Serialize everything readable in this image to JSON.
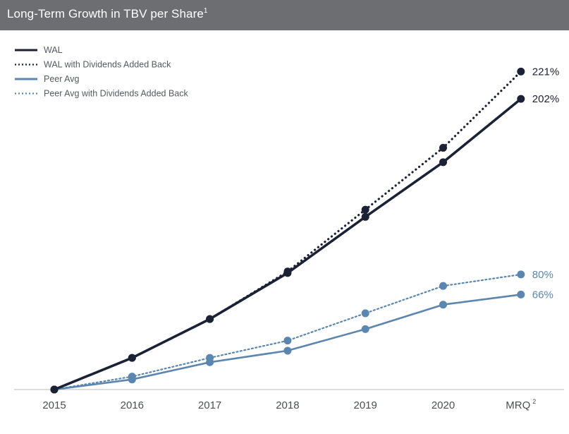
{
  "title": "Long-Term Growth in TBV per Share",
  "title_superscript": "1",
  "colors": {
    "header_bg": "#6d6e71",
    "wal": "#1b2235",
    "peer": "#5b86b0",
    "axis": "#b9b9b9"
  },
  "chart_data": {
    "type": "line",
    "categories": [
      "2015",
      "2016",
      "2017",
      "2018",
      "2019",
      "2020",
      "MRQ"
    ],
    "category_superscripts": [
      "",
      "",
      "",
      "",
      "",
      "",
      "2"
    ],
    "ylim": [
      0,
      230
    ],
    "grid": false,
    "legend_position": "top-left",
    "series": [
      {
        "name": "WAL",
        "style": "solid",
        "color": "#1b2235",
        "values": [
          0,
          22,
          49,
          81,
          120,
          158,
          202
        ],
        "end_label": "202%"
      },
      {
        "name": "WAL with Dividends Added Back",
        "style": "dotted",
        "color": "#1b2235",
        "values": [
          0,
          22,
          49,
          82,
          125,
          168,
          221
        ],
        "end_label": "221%"
      },
      {
        "name": "Peer Avg",
        "style": "solid",
        "color": "#5b86b0",
        "values": [
          0,
          7,
          19,
          27,
          42,
          59,
          66
        ],
        "end_label": "66%"
      },
      {
        "name": "Peer Avg with Dividends Added Back",
        "style": "dotted",
        "color": "#5b86b0",
        "values": [
          0,
          9,
          22,
          34,
          53,
          72,
          80
        ],
        "end_label": "80%"
      }
    ]
  }
}
